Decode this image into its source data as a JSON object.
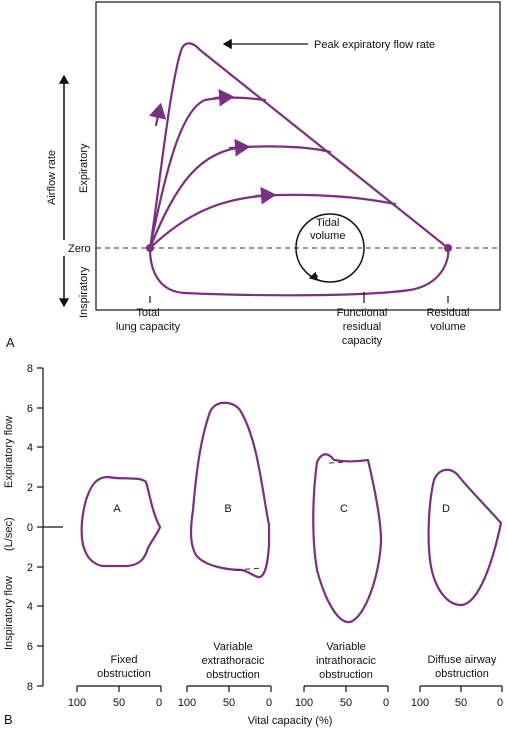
{
  "panel_a": {
    "label": "A",
    "peak_label": "Peak expiratory flow rate",
    "y_axis_title": "Airflow rate",
    "expiratory": "Expiratory",
    "inspiratory": "Inspiratory",
    "zero": "Zero",
    "tidal_line1": "Tidal",
    "tidal_line2": "volume",
    "x_labels": {
      "tlc_line1": "Total",
      "tlc_line2": "lung capacity",
      "frc_line1": "Functional",
      "frc_line2": "residual",
      "frc_line3": "capacity",
      "rv_line1": "Residual",
      "rv_line2": "volume"
    }
  },
  "panel_b": {
    "label": "B",
    "y_title": "(L/sec)",
    "expiratory_flow": "Expiratory flow",
    "inspiratory_flow": "Inspiratory flow",
    "y_ticks": [
      "8",
      "6",
      "4",
      "2",
      "0",
      "2",
      "4",
      "6",
      "8"
    ],
    "loops": [
      {
        "letter": "A",
        "caption_line1": "Fixed",
        "caption_line2": "obstruction"
      },
      {
        "letter": "B",
        "caption_line1": "Variable",
        "caption_line2": "extrathoracic",
        "caption_line3": "obstruction"
      },
      {
        "letter": "C",
        "caption_line1": "Variable",
        "caption_line2": "intrathoracic",
        "caption_line3": "obstruction"
      },
      {
        "letter": "D",
        "caption_line1": "Diffuse airway",
        "caption_line2": "obstruction"
      }
    ],
    "x_ticks": [
      "100",
      "50",
      "0"
    ],
    "x_title": "Vital capacity (%)"
  },
  "colors": {
    "curve": "#7a2f80",
    "axis": "#111111"
  }
}
